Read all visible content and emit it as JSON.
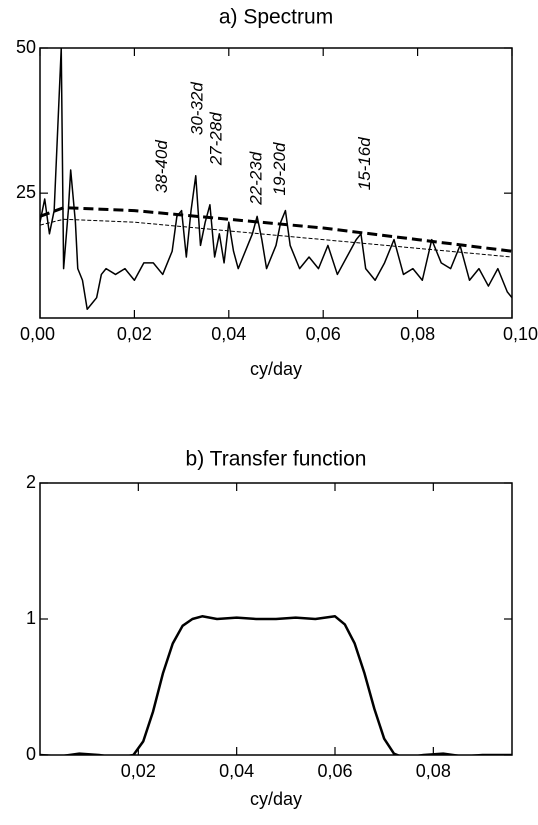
{
  "chart_data": [
    {
      "type": "line",
      "title": "a) Spectrum",
      "x_label": "cy/day",
      "xlim": [
        0,
        0.1
      ],
      "ylim": [
        3.5,
        50
      ],
      "xticks": [
        {
          "value": 0,
          "label": "0,00"
        },
        {
          "value": 0.02,
          "label": "0,02"
        },
        {
          "value": 0.04,
          "label": "0,04"
        },
        {
          "value": 0.06,
          "label": "0,06"
        },
        {
          "value": 0.08,
          "label": "0,08"
        },
        {
          "value": 0.1,
          "label": "0,10"
        }
      ],
      "yticks": [
        25,
        50
      ],
      "series": [
        {
          "style": "solid",
          "color": "#000000",
          "x": [
            0,
            0.001,
            0.002,
            0.003,
            0.0045,
            0.005,
            0.006,
            0.0065,
            0.0075,
            0.008,
            0.009,
            0.01,
            0.011,
            0.012,
            0.013,
            0.014,
            0.016,
            0.018,
            0.02,
            0.022,
            0.024,
            0.026,
            0.028,
            0.029,
            0.03,
            0.031,
            0.032,
            0.033,
            0.034,
            0.035,
            0.036,
            0.037,
            0.038,
            0.039,
            0.04,
            0.041,
            0.042,
            0.044,
            0.045,
            0.046,
            0.047,
            0.048,
            0.05,
            0.051,
            0.052,
            0.053,
            0.055,
            0.057,
            0.059,
            0.061,
            0.063,
            0.065,
            0.067,
            0.068,
            0.069,
            0.071,
            0.073,
            0.075,
            0.077,
            0.079,
            0.081,
            0.083,
            0.084,
            0.085,
            0.087,
            0.089,
            0.091,
            0.093,
            0.095,
            0.097,
            0.099,
            0.1
          ],
          "values": [
            20,
            24,
            18,
            22,
            50,
            12,
            22,
            29,
            20,
            12,
            10,
            5,
            6,
            7,
            11,
            12,
            11,
            12,
            10,
            13,
            13,
            11,
            15,
            21,
            22,
            14,
            22,
            28,
            16,
            20,
            23,
            14,
            18,
            13,
            20,
            15,
            12,
            16,
            18,
            21,
            17,
            12,
            16,
            20,
            22,
            16,
            12,
            14,
            12,
            16,
            11,
            14,
            17,
            18,
            12,
            10,
            13,
            17,
            11,
            12,
            10,
            17,
            15,
            13,
            12,
            16,
            10,
            12,
            9,
            12,
            8,
            7
          ]
        },
        {
          "style": "dashed-thick",
          "color": "#000000",
          "x": [
            0,
            0.005,
            0.02,
            0.04,
            0.06,
            0.08,
            0.1
          ],
          "values": [
            21,
            22.5,
            22,
            20.5,
            19,
            17,
            15
          ]
        },
        {
          "style": "dashed-thin",
          "color": "#000000",
          "x": [
            0,
            0.005,
            0.02,
            0.04,
            0.06,
            0.08,
            0.1
          ],
          "values": [
            19.5,
            20.5,
            20,
            18.5,
            17,
            15.5,
            14
          ]
        }
      ],
      "annotations": [
        {
          "text": "38-40d",
          "x": 0.026,
          "y": 25
        },
        {
          "text": "30-32d",
          "x": 0.0335,
          "y": 35
        },
        {
          "text": "27-28d",
          "x": 0.0375,
          "y": 29.8
        },
        {
          "text": "22-23d",
          "x": 0.046,
          "y": 23
        },
        {
          "text": "19-20d",
          "x": 0.051,
          "y": 24.6
        },
        {
          "text": "15-16d",
          "x": 0.069,
          "y": 25.5
        }
      ]
    },
    {
      "type": "line",
      "title": "b) Transfer function",
      "x_label": "cy/day",
      "xlim": [
        0,
        0.096
      ],
      "ylim": [
        0,
        2
      ],
      "xticks": [
        {
          "value": 0.02,
          "label": "0,02"
        },
        {
          "value": 0.04,
          "label": "0,04"
        },
        {
          "value": 0.06,
          "label": "0,06"
        },
        {
          "value": 0.08,
          "label": "0,08"
        }
      ],
      "yticks": [
        0,
        1,
        2
      ],
      "series": [
        {
          "style": "solid-thick",
          "color": "#000000",
          "x": [
            0,
            0.004,
            0.008,
            0.012,
            0.016,
            0.019,
            0.021,
            0.023,
            0.025,
            0.027,
            0.029,
            0.031,
            0.033,
            0.036,
            0.04,
            0.044,
            0.048,
            0.052,
            0.056,
            0.06,
            0.062,
            0.064,
            0.066,
            0.068,
            0.07,
            0.072,
            0.074,
            0.078,
            0.082,
            0.086,
            0.09,
            0.096
          ],
          "values": [
            0.0,
            -0.01,
            0.01,
            0.0,
            -0.02,
            0.0,
            0.1,
            0.32,
            0.6,
            0.82,
            0.95,
            1.0,
            1.02,
            1.0,
            1.01,
            1.0,
            1.0,
            1.01,
            1.0,
            1.02,
            0.96,
            0.82,
            0.6,
            0.34,
            0.12,
            0.01,
            -0.02,
            0.0,
            0.01,
            -0.01,
            0.0,
            0.0
          ]
        }
      ]
    }
  ]
}
